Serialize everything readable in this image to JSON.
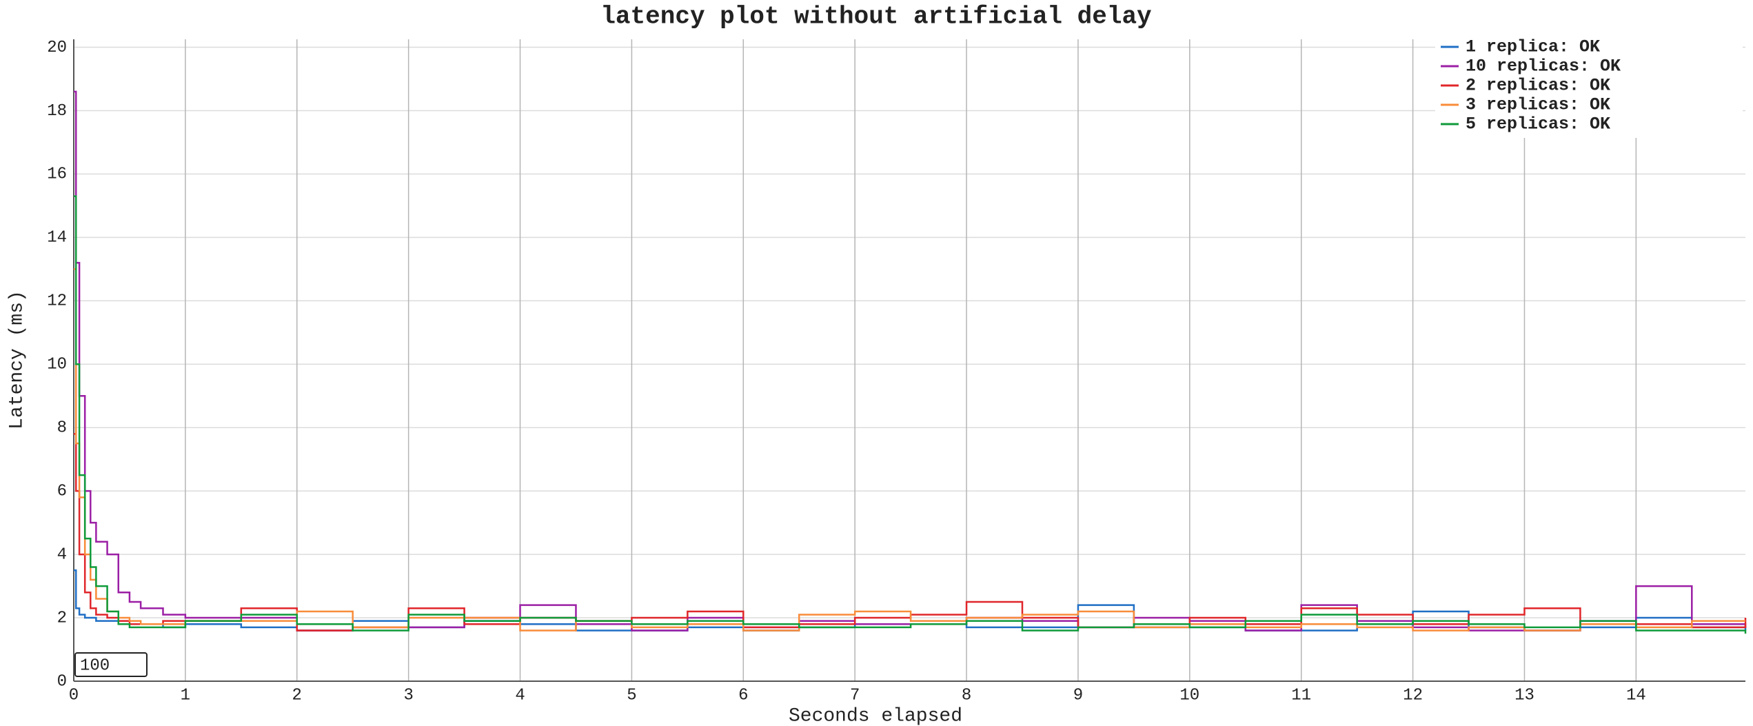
{
  "chart_data": {
    "type": "step-line",
    "title": "latency plot without artificial delay",
    "x_label": "Seconds elapsed",
    "y_label": "Latency (ms)",
    "x": [
      0,
      0.02,
      0.05,
      0.1,
      0.15,
      0.2,
      0.3,
      0.4,
      0.5,
      0.6,
      0.8,
      1,
      1.5,
      2,
      2.5,
      3,
      3.5,
      4,
      4.5,
      5,
      5.5,
      6,
      6.5,
      7,
      7.5,
      8,
      8.5,
      9,
      9.5,
      10,
      10.5,
      11,
      11.5,
      12,
      12.5,
      13,
      13.5,
      14,
      14.5,
      14.98
    ],
    "series": [
      {
        "name": "1 replica: OK",
        "color": "#1f6fc5",
        "values": [
          3.5,
          2.3,
          2.1,
          2.0,
          2.0,
          1.9,
          1.9,
          1.8,
          1.8,
          1.8,
          1.7,
          1.8,
          1.7,
          1.6,
          1.9,
          1.7,
          1.9,
          1.8,
          1.6,
          1.6,
          1.7,
          1.6,
          1.7,
          1.8,
          1.8,
          1.7,
          1.7,
          2.4,
          1.7,
          1.7,
          1.6,
          1.6,
          1.8,
          2.2,
          1.7,
          1.6,
          1.7,
          2.0,
          1.7,
          1.6
        ]
      },
      {
        "name": "10 replicas: OK",
        "color": "#9b1fa5",
        "values": [
          18.6,
          13.2,
          9.0,
          6.0,
          5.0,
          4.4,
          4.0,
          2.8,
          2.5,
          2.3,
          2.1,
          2.0,
          2.0,
          1.6,
          1.7,
          1.7,
          2.0,
          2.4,
          1.8,
          1.6,
          2.0,
          1.7,
          1.9,
          1.8,
          1.8,
          2.0,
          1.9,
          1.7,
          2.0,
          1.9,
          1.6,
          2.4,
          1.9,
          1.7,
          1.6,
          1.6,
          1.9,
          3.0,
          1.8,
          1.7
        ]
      },
      {
        "name": "2 replicas: OK",
        "color": "#e0262a",
        "values": [
          7.8,
          6.0,
          4.0,
          2.8,
          2.3,
          2.1,
          2.0,
          1.9,
          1.8,
          1.8,
          1.9,
          1.9,
          2.3,
          1.6,
          1.7,
          2.3,
          1.8,
          2.0,
          1.9,
          2.0,
          2.2,
          1.7,
          1.8,
          2.0,
          2.1,
          2.5,
          2.0,
          1.7,
          1.8,
          2.0,
          1.8,
          2.3,
          2.1,
          1.8,
          2.1,
          2.3,
          1.8,
          1.8,
          1.7,
          2.0
        ]
      },
      {
        "name": "3 replicas: OK",
        "color": "#f88c3a",
        "values": [
          13.0,
          7.5,
          5.8,
          4.0,
          3.2,
          2.6,
          2.2,
          2.0,
          1.9,
          1.8,
          1.8,
          1.9,
          1.9,
          2.2,
          1.7,
          2.0,
          2.0,
          1.6,
          1.9,
          1.7,
          1.8,
          1.6,
          2.1,
          2.2,
          1.9,
          2.0,
          2.1,
          2.2,
          1.7,
          1.8,
          1.7,
          1.8,
          1.7,
          1.6,
          1.7,
          1.6,
          1.8,
          1.7,
          1.9,
          1.9
        ]
      },
      {
        "name": "5 replicas: OK",
        "color": "#0f9a3a",
        "values": [
          15.3,
          10.0,
          6.5,
          4.5,
          3.6,
          3.0,
          2.2,
          1.8,
          1.7,
          1.7,
          1.7,
          1.9,
          2.1,
          1.8,
          1.6,
          2.1,
          1.9,
          2.0,
          1.9,
          1.8,
          1.9,
          1.8,
          1.7,
          1.7,
          1.8,
          1.9,
          1.6,
          1.7,
          1.8,
          1.7,
          1.9,
          2.1,
          1.8,
          1.9,
          1.8,
          1.7,
          1.9,
          1.6,
          1.6,
          1.5
        ]
      }
    ],
    "xlim": [
      0,
      14.98
    ],
    "xticks": [
      0,
      1,
      2,
      3,
      4,
      5,
      6,
      7,
      8,
      9,
      10,
      11,
      12,
      13,
      14
    ],
    "ylim": [
      0,
      20.25
    ],
    "yticks": [
      0,
      2,
      4,
      6,
      8,
      10,
      12,
      14,
      16,
      18,
      20
    ],
    "grid": true,
    "legend": "top-right"
  },
  "controls": {
    "window": "100"
  }
}
